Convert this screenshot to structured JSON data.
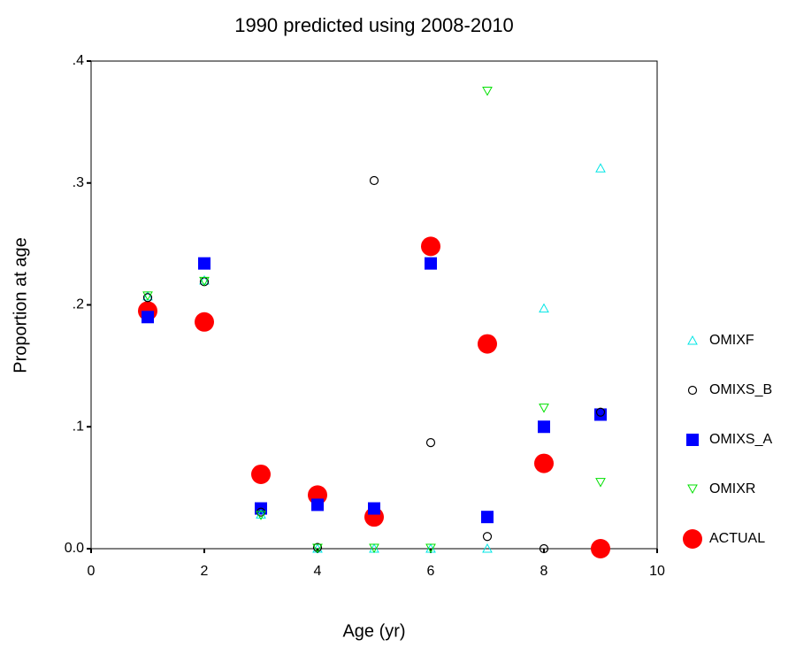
{
  "chart_data": {
    "type": "scatter",
    "title": "1990 predicted using 2008-2010",
    "x_label": "Age (yr)",
    "y_label": "Proportion at age",
    "x": [
      1,
      2,
      3,
      4,
      5,
      6,
      7,
      8,
      9
    ],
    "series": [
      {
        "name": "OMIXF",
        "color": "#00e5e5",
        "marker": "triangle-up",
        "values": [
          0.207,
          0.22,
          0.028,
          0,
          0,
          0,
          0,
          0.197,
          0.312
        ]
      },
      {
        "name": "OMIXS_B",
        "color": "#000000",
        "marker": "circle",
        "values": [
          0.206,
          0.219,
          0.03,
          0.001,
          0.302,
          0.087,
          0.01,
          0,
          0.112
        ]
      },
      {
        "name": "OMIXS_A",
        "color": "#0000ff",
        "marker": "square",
        "values": [
          0.19,
          0.234,
          0.033,
          0.036,
          0.033,
          0.234,
          0.026,
          0.1,
          0.11
        ]
      },
      {
        "name": "OMIXR",
        "color": "#00e000",
        "marker": "triangle-down",
        "values": [
          0.207,
          0.219,
          0.027,
          0,
          0,
          0,
          0.375,
          0.115,
          0.054
        ]
      },
      {
        "name": "ACTUAL",
        "color": "#ff0000",
        "marker": "big-circle",
        "values": [
          0.195,
          0.186,
          0.061,
          0.044,
          0.026,
          0.248,
          0.168,
          0.07,
          0
        ]
      }
    ],
    "xlim": [
      0,
      10
    ],
    "xticks": [
      0,
      2,
      4,
      6,
      8,
      10
    ],
    "ylim": [
      0,
      0.4
    ],
    "yticks": [
      {
        "value": 0,
        "label": "0.0"
      },
      {
        "value": 0.1,
        "label": ".1"
      },
      {
        "value": 0.2,
        "label": ".2"
      },
      {
        "value": 0.3,
        "label": ".3"
      },
      {
        "value": 0.4,
        "label": ".4"
      }
    ],
    "legend": "right"
  }
}
